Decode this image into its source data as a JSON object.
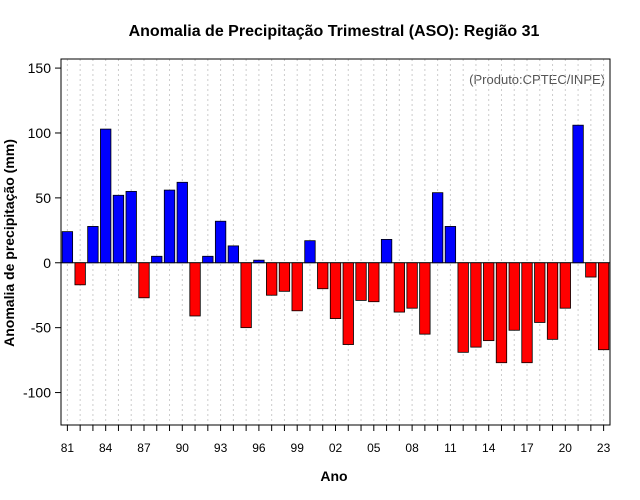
{
  "chart_data": {
    "type": "bar",
    "title": "Anomalia de Precipitação Trimestral (ASO): Região 31",
    "xlabel": "Ano",
    "ylabel": "Anomalia de precipitação (mm)",
    "credit": "(Produto:CPTEC/INPE)",
    "ylim": [
      -125,
      157
    ],
    "yticks": [
      -100,
      -50,
      0,
      50,
      100,
      150
    ],
    "years": [
      1981,
      1982,
      1983,
      1984,
      1985,
      1986,
      1987,
      1988,
      1989,
      1990,
      1991,
      1992,
      1993,
      1994,
      1995,
      1996,
      1997,
      1998,
      1999,
      2000,
      2001,
      2002,
      2003,
      2004,
      2005,
      2006,
      2007,
      2008,
      2009,
      2010,
      2011,
      2012,
      2013,
      2014,
      2015,
      2016,
      2017,
      2018,
      2019,
      2020,
      2021,
      2022,
      2023
    ],
    "xtick_labels": [
      "81",
      "84",
      "87",
      "90",
      "93",
      "96",
      "99",
      "02",
      "05",
      "08",
      "11",
      "14",
      "17",
      "20",
      "23"
    ],
    "values": [
      24,
      -17,
      28,
      103,
      52,
      55,
      -27,
      5,
      56,
      62,
      -41,
      5,
      32,
      13,
      -50,
      2,
      -25,
      -22,
      -37,
      17,
      -20,
      -43,
      -63,
      -29,
      -30,
      18,
      -38,
      -35,
      -55,
      54,
      28,
      -69,
      -65,
      -60,
      -77,
      -52,
      -77,
      -46,
      -59,
      -35,
      106,
      -11,
      -67
    ],
    "grid": true,
    "colors": {
      "positive": "#0000ff",
      "negative": "#ff0000",
      "grid": "#cccccc",
      "axis": "#000000"
    }
  }
}
